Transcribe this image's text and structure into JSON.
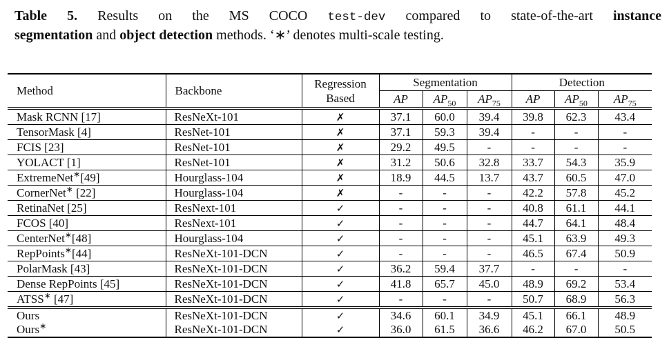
{
  "caption": {
    "line1": [
      {
        "text": "Table 5.",
        "style": "bold"
      },
      {
        "text": " Results on the MS COCO ",
        "style": "normal"
      },
      {
        "text": "test-dev",
        "style": "mono"
      },
      {
        "text": " compared to state-of-the-art ",
        "style": "normal"
      },
      {
        "text": "instance",
        "style": "bold"
      }
    ],
    "line2": [
      {
        "text": "segmentation",
        "style": "bold"
      },
      {
        "text": " and ",
        "style": "normal"
      },
      {
        "text": "object detection",
        "style": "bold"
      },
      {
        "text": " methods. ‘∗’ denotes multi-scale testing.",
        "style": "normal"
      }
    ]
  },
  "table": {
    "headers": {
      "method": "Method",
      "backbone": "Backbone",
      "regression_line1": "Regression",
      "regression_line2": "Based",
      "segmentation": "Segmentation",
      "detection": "Detection",
      "ap_columns": [
        {
          "group": "segmentation",
          "label": "AP",
          "sub": ""
        },
        {
          "group": "segmentation",
          "label": "AP",
          "sub": "50"
        },
        {
          "group": "segmentation",
          "label": "AP",
          "sub": "75"
        },
        {
          "group": "detection",
          "label": "AP",
          "sub": ""
        },
        {
          "group": "detection",
          "label": "AP",
          "sub": "50"
        },
        {
          "group": "detection",
          "label": "AP",
          "sub": "75"
        }
      ]
    },
    "rows": [
      {
        "method": "Mask RCNN [17]",
        "backbone": "ResNeXt-101",
        "regression_based": "✗",
        "segmentation": [
          "37.1",
          "60.0",
          "39.4"
        ],
        "detection": [
          "39.8",
          "62.3",
          "43.4"
        ]
      },
      {
        "method": "TensorMask [4]",
        "backbone": "ResNet-101",
        "regression_based": "✗",
        "segmentation": [
          "37.1",
          "59.3",
          "39.4"
        ],
        "detection": [
          "-",
          "-",
          "-"
        ]
      },
      {
        "method": "FCIS [23]",
        "backbone": "ResNet-101",
        "regression_based": "✗",
        "segmentation": [
          "29.2",
          "49.5",
          "-"
        ],
        "detection": [
          "-",
          "-",
          "-"
        ]
      },
      {
        "method": "YOLACT [1]",
        "backbone": "ResNet-101",
        "regression_based": "✗",
        "segmentation": [
          "31.2",
          "50.6",
          "32.8"
        ],
        "detection": [
          "33.7",
          "54.3",
          "35.9"
        ]
      },
      {
        "method": "ExtremeNet*[49]",
        "backbone": "Hourglass-104",
        "regression_based": "✗",
        "segmentation": [
          "18.9",
          "44.5",
          "13.7"
        ],
        "detection": [
          "43.7",
          "60.5",
          "47.0"
        ]
      },
      {
        "method": "CornerNet* [22]",
        "backbone": "Hourglass-104",
        "regression_based": "✗",
        "segmentation": [
          "-",
          "-",
          "-"
        ],
        "detection": [
          "42.2",
          "57.8",
          "45.2"
        ]
      },
      {
        "method": "RetinaNet [25]",
        "backbone": "ResNext-101",
        "regression_based": "✓",
        "segmentation": [
          "-",
          "-",
          "-"
        ],
        "detection": [
          "40.8",
          "61.1",
          "44.1"
        ]
      },
      {
        "method": "FCOS [40]",
        "backbone": "ResNext-101",
        "regression_based": "✓",
        "segmentation": [
          "-",
          "-",
          "-"
        ],
        "detection": [
          "44.7",
          "64.1",
          "48.4"
        ]
      },
      {
        "method": "CenterNet*[48]",
        "backbone": "Hourglass-104",
        "regression_based": "✓",
        "segmentation": [
          "-",
          "-",
          "-"
        ],
        "detection": [
          "45.1",
          "63.9",
          "49.3"
        ]
      },
      {
        "method": "RepPoints*[44]",
        "backbone": "ResNeXt-101-DCN",
        "regression_based": "✓",
        "segmentation": [
          "-",
          "-",
          "-"
        ],
        "detection": [
          "46.5",
          "67.4",
          "50.9"
        ]
      },
      {
        "method": "PolarMask [43]",
        "backbone": "ResNeXt-101-DCN",
        "regression_based": "✓",
        "segmentation": [
          "36.2",
          "59.4",
          "37.7"
        ],
        "detection": [
          "-",
          "-",
          "-"
        ]
      },
      {
        "method": "Dense RepPoints [45]",
        "backbone": "ResNeXt-101-DCN",
        "regression_based": "✓",
        "segmentation": [
          "41.8",
          "65.7",
          "45.0"
        ],
        "detection": [
          "48.9",
          "69.2",
          "53.4"
        ]
      },
      {
        "method": "ATSS* [47]",
        "backbone": "ResNeXt-101-DCN",
        "regression_based": "✓",
        "segmentation": [
          "-",
          "-",
          "-"
        ],
        "detection": [
          "50.7",
          "68.9",
          "56.3"
        ]
      }
    ],
    "ours_rows": [
      {
        "method": "Ours",
        "backbone": "ResNeXt-101-DCN",
        "regression_based": "✓",
        "segmentation": [
          "34.6",
          "60.1",
          "34.9"
        ],
        "detection": [
          "45.1",
          "66.1",
          "48.9"
        ]
      },
      {
        "method": "Ours*",
        "backbone": "ResNeXt-101-DCN",
        "regression_based": "✓",
        "segmentation": [
          "36.0",
          "61.5",
          "36.6"
        ],
        "detection": [
          "46.2",
          "67.0",
          "50.5"
        ]
      }
    ],
    "star_symbol": "∗",
    "text_color": "#111111",
    "rule_color": "#000000"
  }
}
